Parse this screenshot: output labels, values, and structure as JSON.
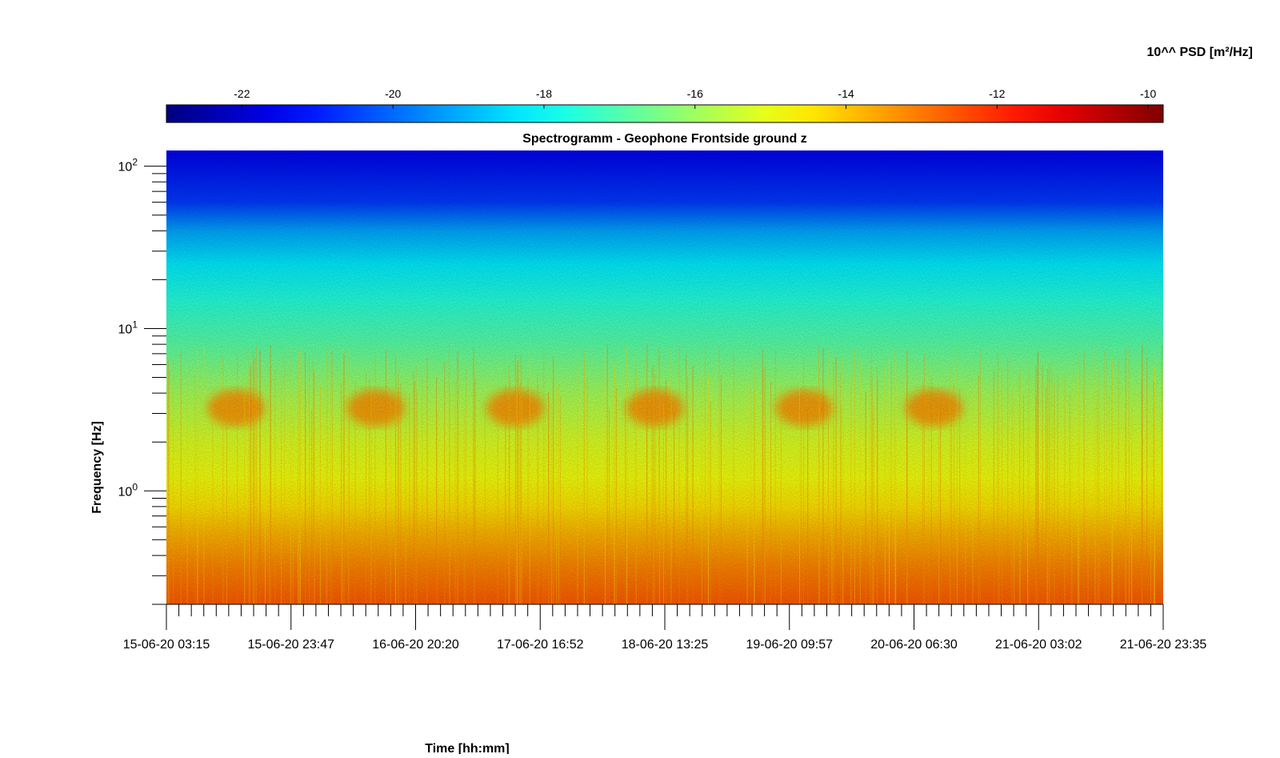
{
  "chart_data": {
    "type": "heatmap",
    "title": "Spectrogramm - Geophone Frontside ground z",
    "xlabel": "Time [hh:mm]",
    "ylabel": "Frequency [Hz]",
    "x_ticks": [
      "15-06-20 03:15",
      "15-06-20 23:47",
      "16-06-20 20:20",
      "17-06-20 16:52",
      "18-06-20 13:25",
      "19-06-20 09:57",
      "20-06-20 06:30",
      "21-06-20 03:02",
      "21-06-20 23:35"
    ],
    "y_scale": "log",
    "y_range": [
      0.2,
      125
    ],
    "y_ticks": [
      {
        "value": 1,
        "base": "10",
        "exp": "0"
      },
      {
        "value": 10,
        "base": "10",
        "exp": "1"
      },
      {
        "value": 100,
        "base": "10",
        "exp": "2"
      }
    ],
    "colorbar": {
      "label": "10^^ PSD [m²/Hz]",
      "range": [
        -23,
        -9.8
      ],
      "ticks": [
        "-22",
        "-20",
        "-18",
        "-16",
        "-14",
        "-12",
        "-10"
      ],
      "tick_values": [
        -22,
        -20,
        -18,
        -16,
        -14,
        -12,
        -10
      ],
      "colormap": "jet"
    },
    "z_levels": [
      {
        "freq": 125,
        "value": -21.6
      },
      {
        "freq": 60,
        "value": -20.6
      },
      {
        "freq": 40,
        "value": -19.2
      },
      {
        "freq": 25,
        "value": -18.3
      },
      {
        "freq": 15,
        "value": -17.6
      },
      {
        "freq": 8,
        "value": -16.9
      },
      {
        "freq": 4,
        "value": -15.9
      },
      {
        "freq": 2,
        "value": -15.2
      },
      {
        "freq": 1.2,
        "value": -14.9
      },
      {
        "freq": 0.8,
        "value": -14.4
      },
      {
        "freq": 0.55,
        "value": -13.8
      },
      {
        "freq": 0.35,
        "value": -13.2
      },
      {
        "freq": 0.2,
        "value": -12.6
      }
    ],
    "daytime_activity_bursts": [
      {
        "time_fraction": 0.07,
        "freq_low": 2.5,
        "freq_high": 4.2
      },
      {
        "time_fraction": 0.21,
        "freq_low": 2.5,
        "freq_high": 4.2
      },
      {
        "time_fraction": 0.35,
        "freq_low": 2.5,
        "freq_high": 4.2
      },
      {
        "time_fraction": 0.49,
        "freq_low": 2.5,
        "freq_high": 4.2
      },
      {
        "time_fraction": 0.64,
        "freq_low": 2.5,
        "freq_high": 4.2
      },
      {
        "time_fraction": 0.77,
        "freq_low": 2.5,
        "freq_high": 4.2
      }
    ]
  }
}
